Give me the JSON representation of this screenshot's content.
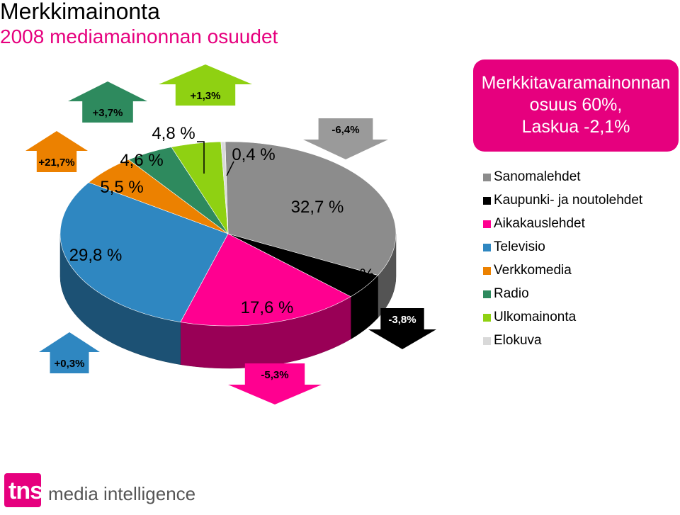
{
  "header": {
    "title": "Merkkimainonta",
    "subtitle": "2008 mediamainonnan osuudet"
  },
  "callout": {
    "lines": [
      "Merkkitavaramainonnan",
      "osuus 60%,",
      "Laskua -2,1%"
    ]
  },
  "colors": {
    "brand": "#e6007e"
  },
  "logo": {
    "mark": "tns",
    "text": "media intelligence"
  },
  "chart_data": {
    "type": "pie",
    "title": "",
    "legend_position": "right",
    "slices": [
      {
        "name": "Sanomalehdet",
        "value": 32.7,
        "label": "32,7 %",
        "change": "-6,4%",
        "direction": "down",
        "color": "#8c8c8c"
      },
      {
        "name": "Kaupunki- ja noutolehdet",
        "value": 4.5,
        "label": "4,5 %",
        "change": "-3,8%",
        "direction": "down",
        "color": "#000000"
      },
      {
        "name": "Aikakauslehdet",
        "value": 17.6,
        "label": "17,6 %",
        "change": "-5,3%",
        "direction": "down",
        "color": "#ff0090"
      },
      {
        "name": "Televisio",
        "value": 29.8,
        "label": "29,8 %",
        "change": "+0,3%",
        "direction": "up",
        "color": "#2f87c1"
      },
      {
        "name": "Verkkomedia",
        "value": 5.5,
        "label": "5,5 %",
        "change": "+21,7%",
        "direction": "up",
        "color": "#ec8100"
      },
      {
        "name": "Radio",
        "value": 4.6,
        "label": "4,6 %",
        "change": "+3,7%",
        "direction": "up",
        "color": "#2e8a5e"
      },
      {
        "name": "Ulkomainonta",
        "value": 4.8,
        "label": "4,8 %",
        "change": "+1,3%",
        "direction": "up",
        "color": "#8fd112"
      },
      {
        "name": "Elokuva",
        "value": 0.4,
        "label": "0,4 %",
        "change": "",
        "direction": "",
        "color": "#d9d9d9"
      }
    ]
  }
}
